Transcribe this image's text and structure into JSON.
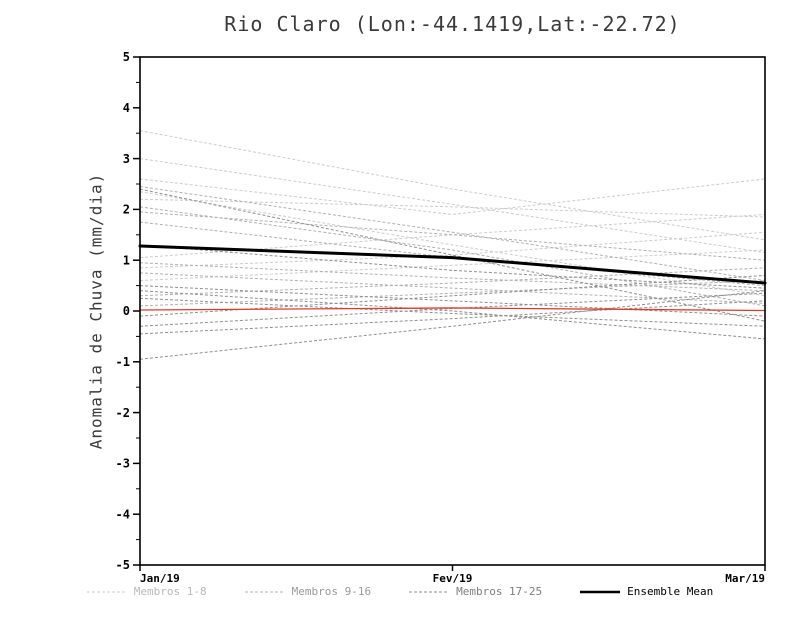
{
  "title": "Rio Claro (Lon:-44.1419,Lat:-22.72)",
  "chart_data": {
    "type": "line",
    "title": "Rio Claro (Lon:-44.1419,Lat:-22.72)",
    "xlabel": "",
    "ylabel": "Anomalia de Chuva (mm/dia)",
    "x_categories": [
      "Jan/19",
      "Fev/19",
      "Mar/19"
    ],
    "ylim": [
      -5,
      5
    ],
    "y_ticks": [
      -5,
      -4,
      -3,
      -2,
      -1,
      0,
      1,
      2,
      3,
      4,
      5
    ],
    "grid": false,
    "legend_position": "bottom",
    "series_groups": [
      {
        "name": "Membros 1-8",
        "color": "#cccccc",
        "style": "dashed",
        "members": [
          [
            3.55,
            2.4,
            1.4
          ],
          [
            3.0,
            2.1,
            1.15
          ],
          [
            2.6,
            1.9,
            2.6
          ],
          [
            2.35,
            1.3,
            0.3
          ],
          [
            2.2,
            2.05,
            1.85
          ],
          [
            1.05,
            1.5,
            1.9
          ],
          [
            0.85,
            1.1,
            1.55
          ],
          [
            0.6,
            0.9,
            1.2
          ]
        ]
      },
      {
        "name": "Membros 9-16",
        "color": "#b0b0b0",
        "style": "dashed",
        "members": [
          [
            2.45,
            1.55,
            0.6
          ],
          [
            2.05,
            1.2,
            0.1
          ],
          [
            1.95,
            1.5,
            1.0
          ],
          [
            1.75,
            1.05,
            0.5
          ],
          [
            0.95,
            0.65,
            0.4
          ],
          [
            0.75,
            0.45,
            0.15
          ],
          [
            0.3,
            0.55,
            0.85
          ],
          [
            0.1,
            0.35,
            0.6
          ]
        ]
      },
      {
        "name": "Membros 17-25",
        "color": "#8f8f8f",
        "style": "dashed",
        "members": [
          [
            2.4,
            1.1,
            -0.2
          ],
          [
            1.3,
            0.8,
            0.45
          ],
          [
            0.5,
            0.2,
            -0.1
          ],
          [
            0.25,
            -0.05,
            -0.3
          ],
          [
            -0.1,
            0.3,
            0.7
          ],
          [
            -0.3,
            0.05,
            0.35
          ],
          [
            -0.45,
            -0.15,
            0.2
          ],
          [
            -0.95,
            -0.3,
            0.4
          ],
          [
            0.4,
            0.0,
            -0.55
          ]
        ]
      }
    ],
    "zero_line": {
      "color": "#e03a2f",
      "values": [
        0.02,
        0.06,
        0.01
      ]
    },
    "ensemble_mean": {
      "name": "Ensemble Mean",
      "color": "#000000",
      "values": [
        1.28,
        1.05,
        0.55
      ]
    }
  },
  "legend": {
    "items": [
      {
        "label": "Membros 1-8",
        "color": "#cccccc",
        "text_color": "#b8b8b8",
        "style": "dashed"
      },
      {
        "label": "Membros 9-16",
        "color": "#b0b0b0",
        "text_color": "#9a9a9a",
        "style": "dashed"
      },
      {
        "label": "Membros 17-25",
        "color": "#8f8f8f",
        "text_color": "#7d7d7d",
        "style": "dashed"
      },
      {
        "label": "Ensemble Mean",
        "color": "#000000",
        "text_color": "#000000",
        "style": "solid"
      }
    ]
  }
}
